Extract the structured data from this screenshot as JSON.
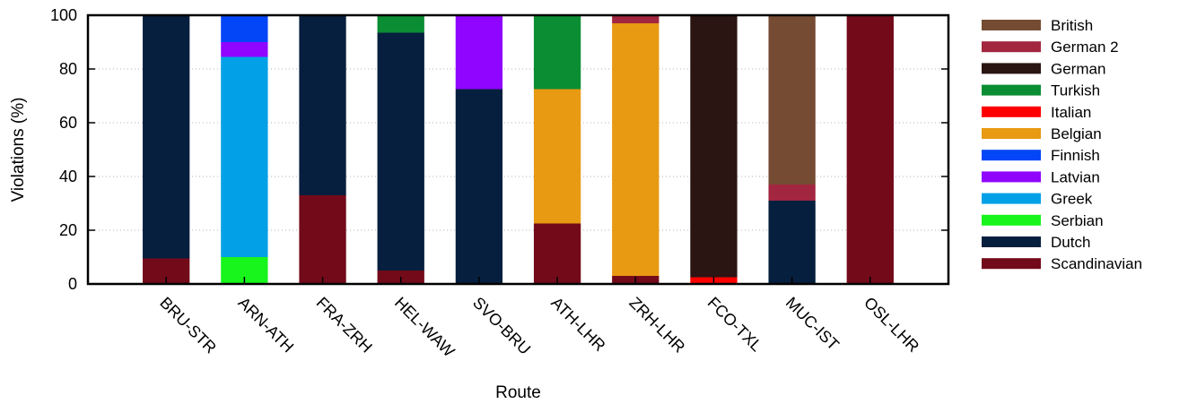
{
  "chart_data": {
    "type": "bar",
    "stacked": true,
    "title": "",
    "xlabel": "Route",
    "ylabel": "Violations (%)",
    "ylim": [
      0,
      100
    ],
    "yticks": [
      0,
      20,
      40,
      60,
      80,
      100
    ],
    "grid": "horizontal dotted",
    "legend_position": "right",
    "categories": [
      "BRU-STR",
      "ARN-ATH",
      "FRA-ZRH",
      "HEL-WAW",
      "SVO-BRU",
      "ATH-LHR",
      "ZRH-LHR",
      "FCO-TXL",
      "MUC-IST",
      "OSL-LHR"
    ],
    "series": [
      {
        "name": "Scandinavian",
        "color": "#730a1a",
        "values": [
          9.5,
          0,
          33,
          5,
          0,
          22.5,
          3,
          0,
          0,
          100
        ]
      },
      {
        "name": "Dutch",
        "color": "#061f3e",
        "values": [
          90.5,
          0,
          67,
          88.5,
          72.5,
          0,
          0,
          0,
          31,
          0
        ]
      },
      {
        "name": "Serbian",
        "color": "#18f51d",
        "values": [
          0,
          10,
          0,
          0,
          0,
          0,
          0,
          0,
          0,
          0
        ]
      },
      {
        "name": "Greek",
        "color": "#02a0e6",
        "values": [
          0,
          74.5,
          0,
          0,
          0,
          0,
          0,
          0,
          0,
          0
        ]
      },
      {
        "name": "Latvian",
        "color": "#8f05ff",
        "values": [
          0,
          5.5,
          0,
          0,
          27.5,
          0,
          0,
          0,
          0,
          0
        ]
      },
      {
        "name": "Finnish",
        "color": "#0346f7",
        "values": [
          0,
          10,
          0,
          0,
          0,
          0,
          0,
          0,
          0,
          0
        ]
      },
      {
        "name": "Belgian",
        "color": "#e79a12",
        "values": [
          0,
          0,
          0,
          0,
          0,
          50,
          94,
          0,
          0,
          0
        ]
      },
      {
        "name": "Italian",
        "color": "#ff0000",
        "values": [
          0,
          0,
          0,
          0,
          0,
          0,
          0,
          2.5,
          0,
          0
        ]
      },
      {
        "name": "Turkish",
        "color": "#0b8e33",
        "values": [
          0,
          0,
          0,
          6.5,
          0,
          27.5,
          0,
          0,
          0,
          0
        ]
      },
      {
        "name": "German",
        "color": "#2a1513",
        "values": [
          0,
          0,
          0,
          0,
          0,
          0,
          0,
          97.5,
          0,
          0
        ]
      },
      {
        "name": "German 2",
        "color": "#a2263f",
        "values": [
          0,
          0,
          0,
          0,
          0,
          0,
          3,
          0,
          6,
          0
        ]
      },
      {
        "name": "British",
        "color": "#754c33",
        "values": [
          0,
          0,
          0,
          0,
          0,
          0,
          0,
          0,
          63,
          0
        ]
      }
    ],
    "legend_order": [
      "British",
      "German 2",
      "German",
      "Turkish",
      "Italian",
      "Belgian",
      "Finnish",
      "Latvian",
      "Greek",
      "Serbian",
      "Dutch",
      "Scandinavian"
    ]
  }
}
